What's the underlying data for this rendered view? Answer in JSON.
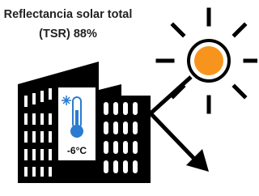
{
  "title": {
    "lines": [
      "Reflectancia solar total",
      "(TSR) 88%"
    ]
  },
  "thermometer": {
    "label": "-6°C"
  }
}
